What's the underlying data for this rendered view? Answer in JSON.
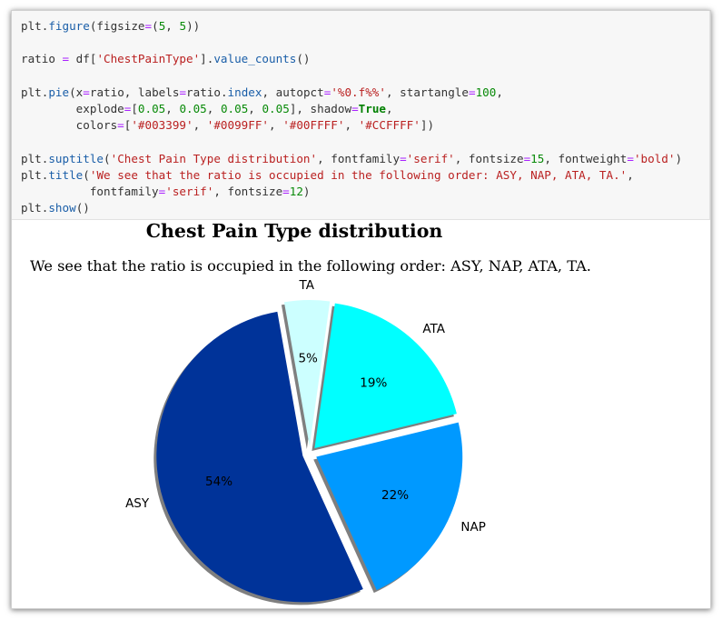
{
  "code_lines": [
    [
      [
        "plt",
        "var"
      ],
      [
        ".",
        "p"
      ],
      [
        "figure",
        "fn"
      ],
      [
        "(figsize",
        "p"
      ],
      [
        "=",
        "op"
      ],
      [
        "(",
        "p"
      ],
      [
        "5",
        "num"
      ],
      [
        ", ",
        "p"
      ],
      [
        "5",
        "num"
      ],
      [
        "))",
        "p"
      ]
    ],
    [],
    [
      [
        "ratio ",
        "var"
      ],
      [
        "=",
        "op"
      ],
      [
        " df[",
        "p"
      ],
      [
        "'ChestPainType'",
        "str"
      ],
      [
        "].",
        "p"
      ],
      [
        "value_counts",
        "fn"
      ],
      [
        "()",
        "p"
      ]
    ],
    [],
    [
      [
        "plt",
        "var"
      ],
      [
        ".",
        "p"
      ],
      [
        "pie",
        "fn"
      ],
      [
        "(x",
        "p"
      ],
      [
        "=",
        "op"
      ],
      [
        "ratio, labels",
        "p"
      ],
      [
        "=",
        "op"
      ],
      [
        "ratio",
        "p"
      ],
      [
        ".",
        "p"
      ],
      [
        "index",
        "fn"
      ],
      [
        ", autopct",
        "p"
      ],
      [
        "=",
        "op"
      ],
      [
        "'%0.f%%'",
        "str"
      ],
      [
        ", startangle",
        "p"
      ],
      [
        "=",
        "op"
      ],
      [
        "100",
        "num"
      ],
      [
        ",",
        "p"
      ]
    ],
    [
      [
        "        explode",
        "p"
      ],
      [
        "=",
        "op"
      ],
      [
        "[",
        "p"
      ],
      [
        "0.05",
        "num"
      ],
      [
        ", ",
        "p"
      ],
      [
        "0.05",
        "num"
      ],
      [
        ", ",
        "p"
      ],
      [
        "0.05",
        "num"
      ],
      [
        ", ",
        "p"
      ],
      [
        "0.05",
        "num"
      ],
      [
        "], shadow",
        "p"
      ],
      [
        "=",
        "op"
      ],
      [
        "True",
        "kw"
      ],
      [
        ",",
        "p"
      ]
    ],
    [
      [
        "        colors",
        "p"
      ],
      [
        "=",
        "op"
      ],
      [
        "[",
        "p"
      ],
      [
        "'#003399'",
        "str"
      ],
      [
        ", ",
        "p"
      ],
      [
        "'#0099FF'",
        "str"
      ],
      [
        ", ",
        "p"
      ],
      [
        "'#00FFFF'",
        "str"
      ],
      [
        ", ",
        "p"
      ],
      [
        "'#CCFFFF'",
        "str"
      ],
      [
        "])",
        "p"
      ]
    ],
    [],
    [
      [
        "plt",
        "var"
      ],
      [
        ".",
        "p"
      ],
      [
        "suptitle",
        "fn"
      ],
      [
        "(",
        "p"
      ],
      [
        "'Chest Pain Type distribution'",
        "str"
      ],
      [
        ", fontfamily",
        "p"
      ],
      [
        "=",
        "op"
      ],
      [
        "'serif'",
        "str"
      ],
      [
        ", fontsize",
        "p"
      ],
      [
        "=",
        "op"
      ],
      [
        "15",
        "num"
      ],
      [
        ", fontweight",
        "p"
      ],
      [
        "=",
        "op"
      ],
      [
        "'bold'",
        "str"
      ],
      [
        ")",
        "p"
      ]
    ],
    [
      [
        "plt",
        "var"
      ],
      [
        ".",
        "p"
      ],
      [
        "title",
        "fn"
      ],
      [
        "(",
        "p"
      ],
      [
        "'We see that the ratio is occupied in the following order: ASY, NAP, ATA, TA.'",
        "str"
      ],
      [
        ",",
        "p"
      ]
    ],
    [
      [
        "          fontfamily",
        "p"
      ],
      [
        "=",
        "op"
      ],
      [
        "'serif'",
        "str"
      ],
      [
        ", fontsize",
        "p"
      ],
      [
        "=",
        "op"
      ],
      [
        "12",
        "num"
      ],
      [
        ")",
        "p"
      ]
    ],
    [
      [
        "plt",
        "var"
      ],
      [
        ".",
        "p"
      ],
      [
        "show",
        "fn"
      ],
      [
        "()",
        "p"
      ]
    ]
  ],
  "figure": {
    "suptitle": "Chest Pain Type distribution",
    "title": "We see that the ratio is occupied in the following order: ASY, NAP, ATA, TA."
  },
  "chart_data": {
    "type": "pie",
    "title": "Chest Pain Type distribution",
    "subtitle": "We see that the ratio is occupied in the following order: ASY, NAP, ATA, TA.",
    "categories": [
      "ASY",
      "NAP",
      "ATA",
      "TA"
    ],
    "values": [
      54,
      22,
      19,
      5
    ],
    "labels": [
      "54%",
      "22%",
      "19%",
      "5%"
    ],
    "colors": [
      "#003399",
      "#0099FF",
      "#00FFFF",
      "#CCFFFF"
    ],
    "start_angle": 100,
    "explode": [
      0.05,
      0.05,
      0.05,
      0.05
    ],
    "shadow": true
  }
}
